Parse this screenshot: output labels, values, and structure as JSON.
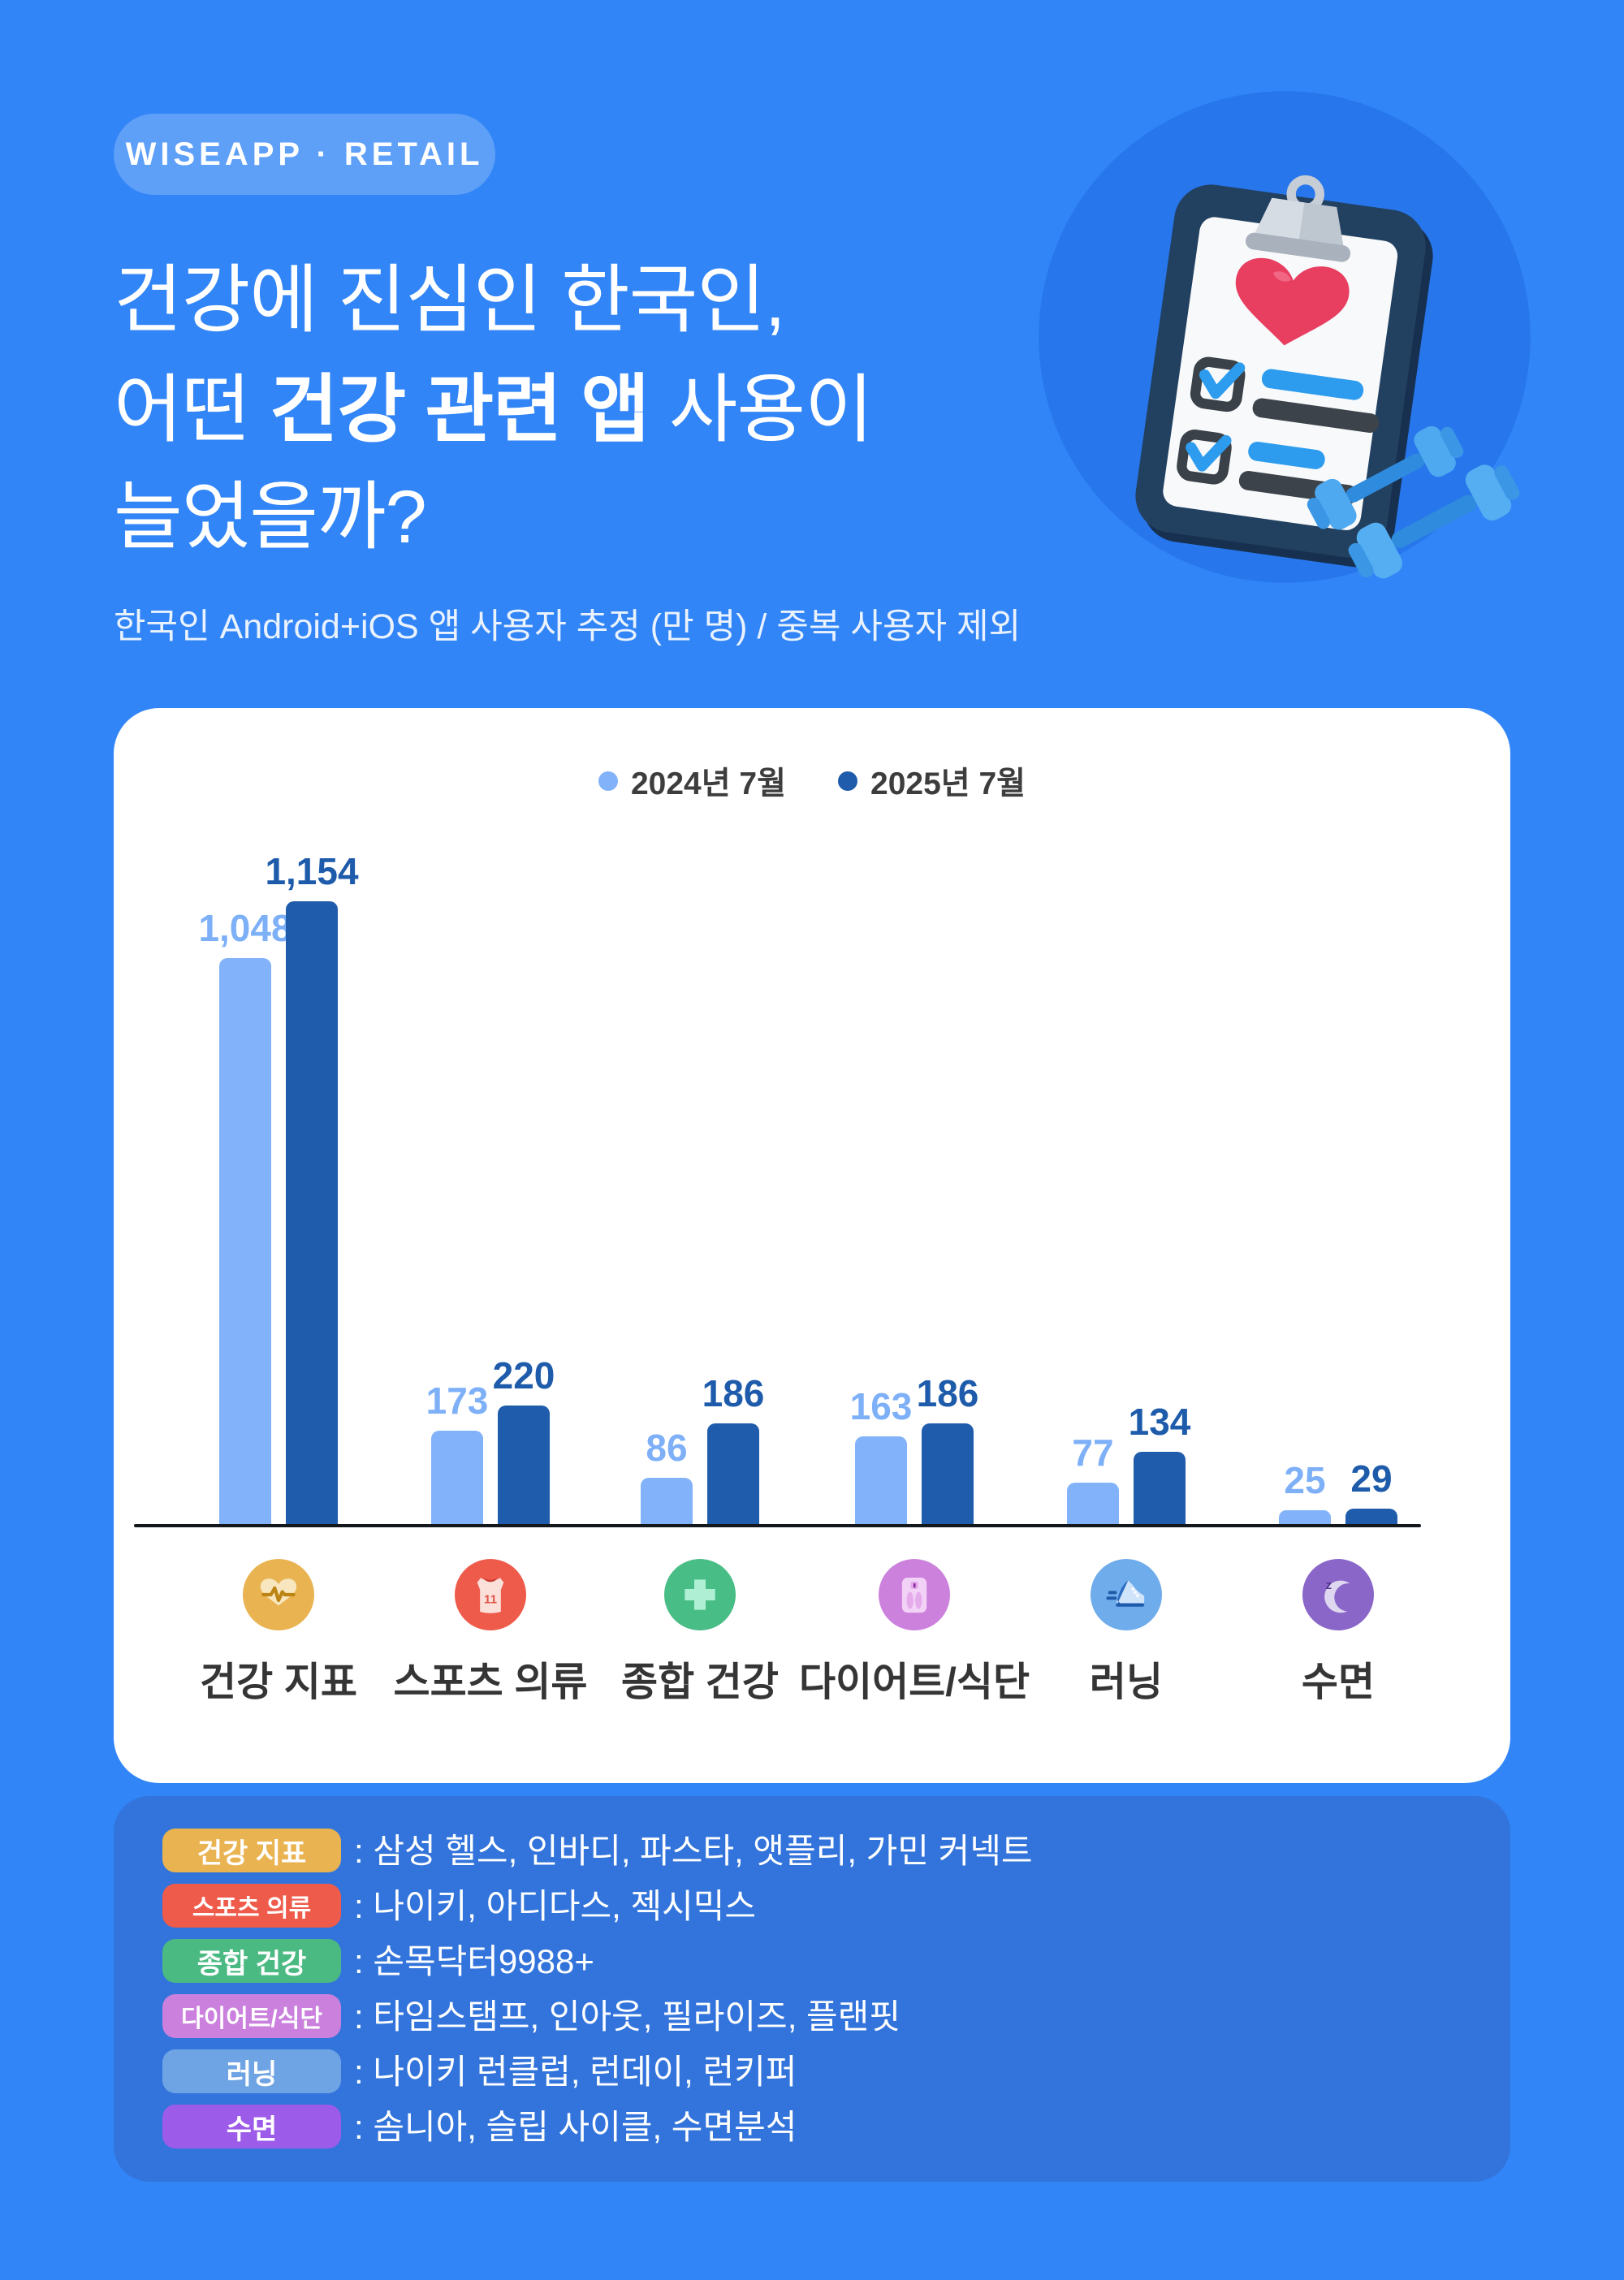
{
  "page": {
    "background": "#3185F7",
    "panel_background": "#3274DB"
  },
  "header": {
    "badge": "WISEAPP · RETAIL",
    "title_line1": "건강에 진심인 한국인,",
    "title_line2_pre": "어떤 ",
    "title_line2_bold": "건강 관련 앱",
    "title_line2_post": " 사용이",
    "title_line3": "늘었을까?",
    "subtitle": "한국인 Android+iOS 앱 사용자 추정 (만 명) / 중복 사용자 제외"
  },
  "illustration": {
    "name": "clipboard-heart-checklist-with-dumbbells-icon",
    "circle_color": "#2776EC"
  },
  "chart_data": {
    "type": "bar",
    "title": "",
    "categories": [
      "건강 지표",
      "스포츠 의류",
      "종합 건강",
      "다이어트/식단",
      "러닝",
      "수면"
    ],
    "category_icons": [
      "heart-pulse-icon",
      "sports-jersey-icon",
      "medical-cross-icon",
      "weight-scale-icon",
      "running-shoe-icon",
      "sleep-moon-icon"
    ],
    "category_icon_colors": [
      "#E9B351",
      "#EF5B4B",
      "#49BD86",
      "#CC82DD",
      "#6FACEB",
      "#8A66C9"
    ],
    "series": [
      {
        "name": "2024년 7월",
        "color": "#82B2F9",
        "label_color": "#7EB0F8",
        "values": [
          1048,
          173,
          86,
          163,
          77,
          25
        ],
        "labels": [
          "1,048",
          "173",
          "86",
          "163",
          "77",
          "25"
        ]
      },
      {
        "name": "2025년 7월",
        "color": "#1F5CAB",
        "label_color": "#1E5CAB",
        "values": [
          1154,
          220,
          186,
          186,
          134,
          29
        ],
        "labels": [
          "1,154",
          "220",
          "186",
          "186",
          "134",
          "29"
        ]
      }
    ],
    "ylim": [
      0,
      1200
    ],
    "unit": "만 명",
    "grid": false,
    "legend_position": "top-center",
    "baseline_color": "#14181D"
  },
  "footer_legend": {
    "separator": ":",
    "rows": [
      {
        "label": "건강 지표",
        "color": "#E9B351",
        "apps": "삼성 헬스, 인바디, 파스타, 앳플리, 가민 커넥트"
      },
      {
        "label": "스포츠 의류",
        "color": "#EF5B4B",
        "apps": "나이키, 아디다스, 젝시믹스"
      },
      {
        "label": "종합 건강",
        "color": "#4BBA82",
        "apps": "손목닥터9988+"
      },
      {
        "label": "다이어트/식단",
        "color": "#CA80DC",
        "apps": "타임스탬프, 인아웃, 필라이즈, 플랜핏"
      },
      {
        "label": "러닝",
        "color": "#6FA4E4",
        "apps": "나이키 런클럽, 런데이, 런키퍼"
      },
      {
        "label": "수면",
        "color": "#9C5BE9",
        "apps": "솜니아, 슬립 사이클, 수면분석"
      }
    ]
  }
}
